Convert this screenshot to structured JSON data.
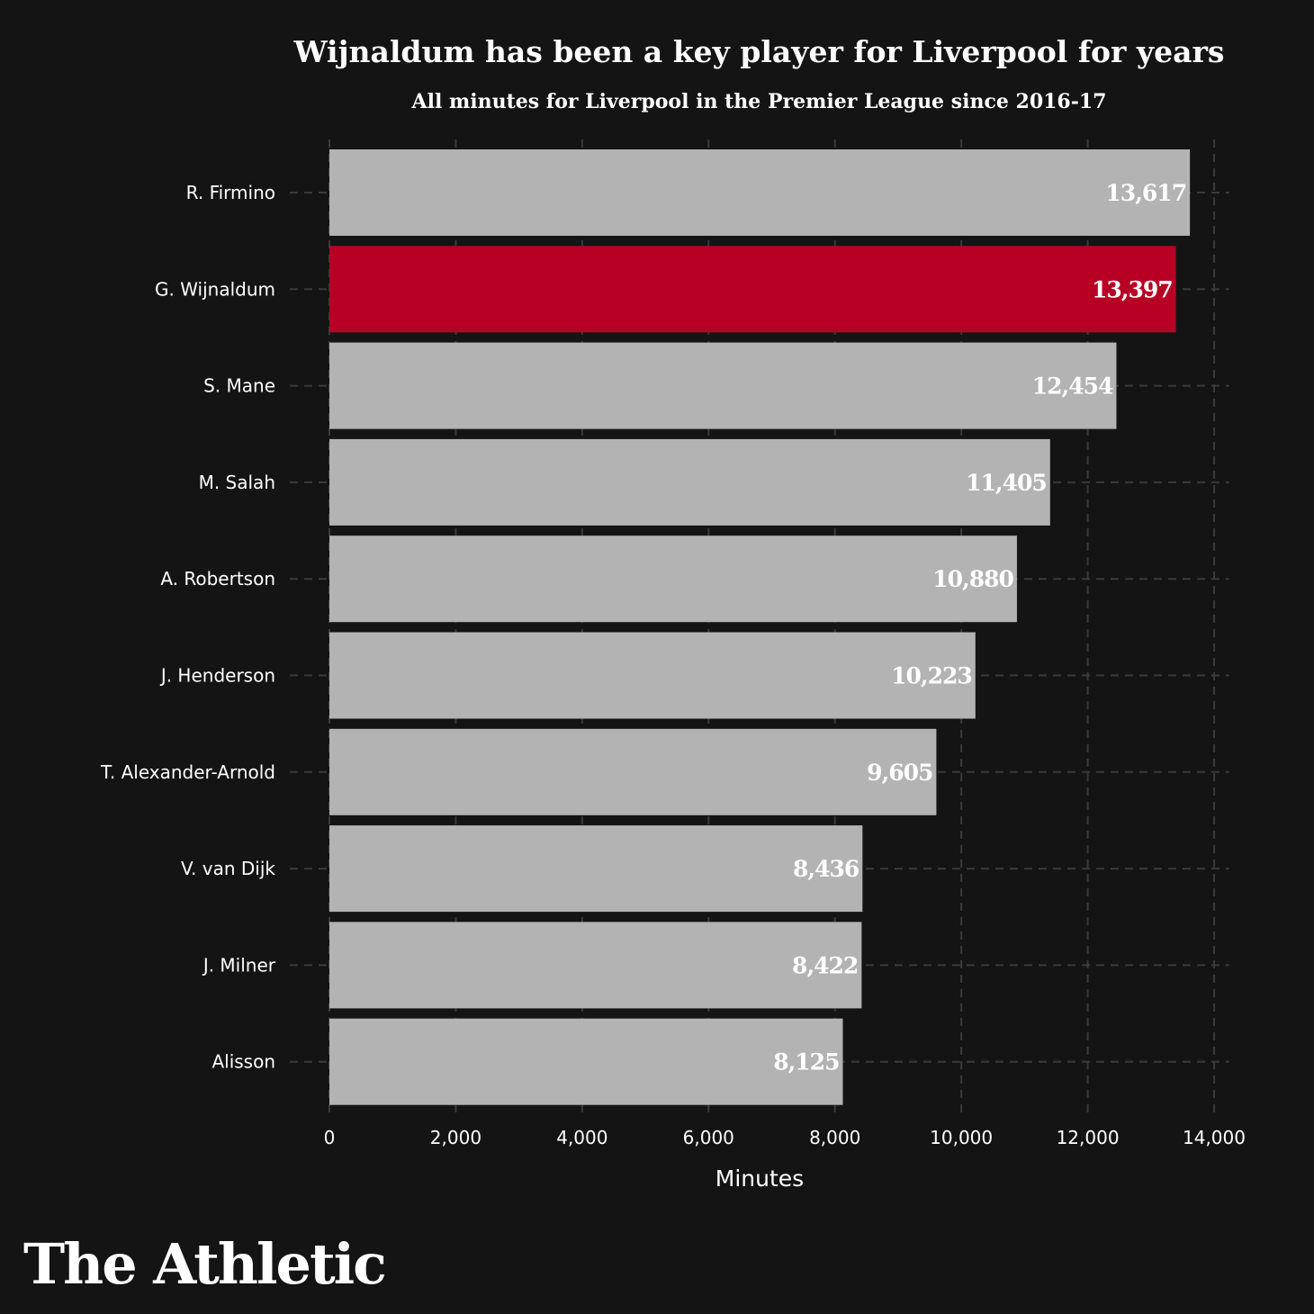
{
  "chart_data": {
    "type": "bar",
    "orientation": "horizontal",
    "title": "Wijnaldum has been a key player for Liverpool for years",
    "subtitle": "All minutes for Liverpool in the Premier League since 2016-17",
    "xlabel": "Minutes",
    "ylabel": "",
    "xlim": [
      0,
      14000
    ],
    "xticks": [
      0,
      2000,
      4000,
      6000,
      8000,
      10000,
      12000,
      14000
    ],
    "xtick_labels": [
      "0",
      "2,000",
      "4,000",
      "6,000",
      "8,000",
      "10,000",
      "12,000",
      "14,000"
    ],
    "grid": true,
    "categories": [
      "R. Firmino",
      "G. Wijnaldum",
      "S. Mane",
      "M. Salah",
      "A. Robertson",
      "J. Henderson",
      "T. Alexander-Arnold",
      "V. van Dijk",
      "J. Milner",
      "Alisson"
    ],
    "values": [
      13617,
      13397,
      12454,
      11405,
      10880,
      10223,
      9605,
      8436,
      8422,
      8125
    ],
    "value_labels": [
      "13,617",
      "13,397",
      "12,454",
      "11,405",
      "10,880",
      "10,223",
      "9,605",
      "8,436",
      "8,422",
      "8,125"
    ],
    "highlight": "G. Wijnaldum",
    "colors": {
      "background": "#141414",
      "bar": "#b3b3b3",
      "highlight": "#b80024",
      "grid": "#3a3a3a",
      "text": "#ffffff"
    }
  },
  "branding": {
    "logo_text": "The Athletic"
  }
}
